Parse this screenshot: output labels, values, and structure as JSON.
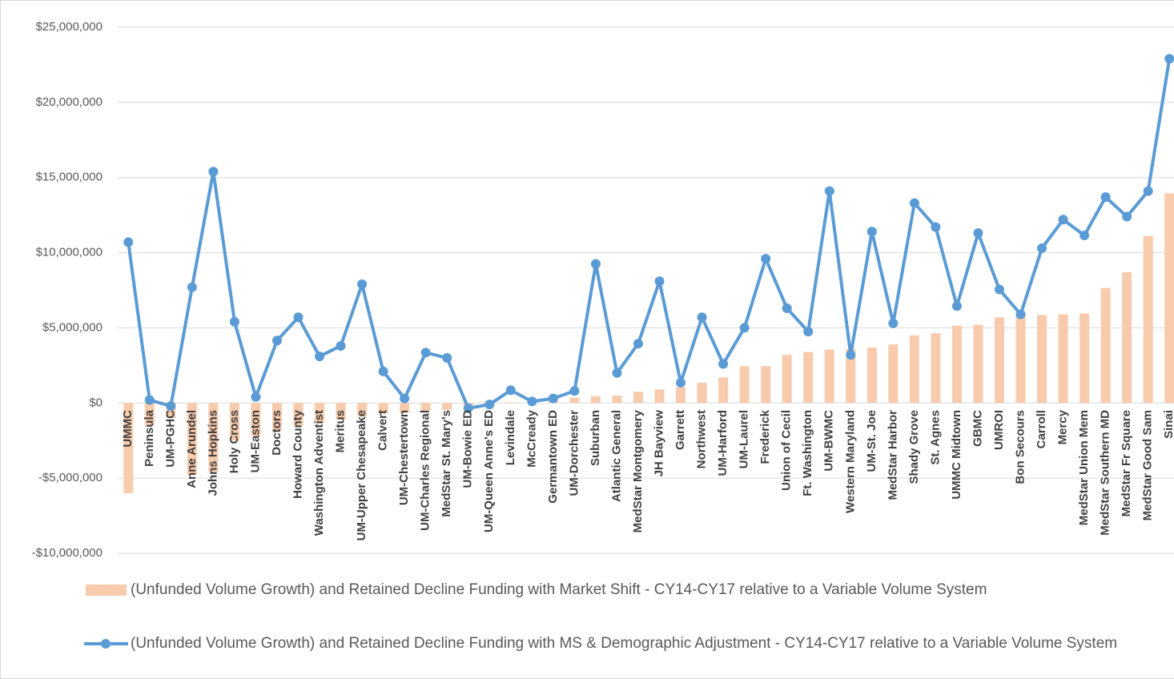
{
  "chart_data": {
    "type": "combo",
    "categories": [
      "UMMC",
      "Peninsula",
      "UM-PGHC",
      "Anne Arundel",
      "Johns Hopkins",
      "Holy Cross",
      "UM-Easton",
      "Doctors",
      "Howard County",
      "Washington Adventist",
      "Meritus",
      "UM-Upper Chesapeake",
      "Calvert",
      "UM-Chestertown",
      "UM-Charles Regional",
      "MedStar St. Mary's",
      "UM-Bowie ED",
      "UM-Queen Anne's ED",
      "Levindale",
      "McCready",
      "Germantown ED",
      "UM-Dorchester",
      "Suburban",
      "Atlantic General",
      "MedStar Montgomery",
      "JH Bayview",
      "Garrett",
      "Northwest",
      "UM-Harford",
      "UM-Laurel",
      "Frederick",
      "Union of Cecil",
      "Ft. Washington",
      "UM-BWMC",
      "Western Maryland",
      "UM-St. Joe",
      "MedStar Harbor",
      "Shady Grove",
      "St. Agnes",
      "UMMC Midtown",
      "GBMC",
      "UMROI",
      "Bon Secours",
      "Carroll",
      "Mercy",
      "MedStar Union Mem",
      "MedStar Southern MD",
      "MedStar Fr Square",
      "MedStar Good Sam",
      "Sinai"
    ],
    "series": [
      {
        "name": "(Unfunded Volume Growth) and Retained Decline Funding with Market Shift - CY14-CY17 relative to a Variable Volume System",
        "type": "bar",
        "color": "#f8cbad",
        "values": [
          -6000000,
          -1500000,
          -1000000,
          -4800000,
          -4600000,
          -2500000,
          -2200000,
          -1800000,
          -1500000,
          -1300000,
          -1100000,
          -900000,
          -700000,
          -650000,
          -550000,
          -450000,
          -200000,
          -100000,
          50000,
          100000,
          150000,
          350000,
          450000,
          500000,
          750000,
          900000,
          1050000,
          1350000,
          1700000,
          2450000,
          2450000,
          3200000,
          3400000,
          3550000,
          3600000,
          3700000,
          3900000,
          4500000,
          4650000,
          5150000,
          5200000,
          5700000,
          5850000,
          5850000,
          5900000,
          5950000,
          7650000,
          8700000,
          11100000,
          13950000
        ]
      },
      {
        "name": "(Unfunded Volume Growth) and Retained Decline Funding with MS & Demographic Adjustment - CY14-CY17 relative to a Variable Volume System",
        "type": "line",
        "color": "#5b9bd5",
        "values": [
          10700000,
          200000,
          -200000,
          7700000,
          15400000,
          5400000,
          400000,
          4150000,
          5700000,
          3100000,
          3800000,
          7900000,
          2100000,
          300000,
          3350000,
          3000000,
          -350000,
          -100000,
          850000,
          100000,
          300000,
          800000,
          9250000,
          2000000,
          3950000,
          8100000,
          1350000,
          5700000,
          2600000,
          5000000,
          9600000,
          6300000,
          4750000,
          14100000,
          3200000,
          11400000,
          5300000,
          13300000,
          11700000,
          6450000,
          11300000,
          7550000,
          5900000,
          10300000,
          12200000,
          11150000,
          13700000,
          12400000,
          14100000,
          22900000
        ]
      }
    ],
    "ylim": [
      -10000000,
      25000000
    ],
    "yticks": [
      {
        "value": -10000000,
        "label": "-$10,000,000"
      },
      {
        "value": -5000000,
        "label": "-$5,000,000"
      },
      {
        "value": 0,
        "label": "$0"
      },
      {
        "value": 5000000,
        "label": "$5,000,000"
      },
      {
        "value": 10000000,
        "label": "$10,000,000"
      },
      {
        "value": 15000000,
        "label": "$15,000,000"
      },
      {
        "value": 20000000,
        "label": "$20,000,000"
      },
      {
        "value": 25000000,
        "label": "$25,000,000"
      }
    ],
    "grid": true
  }
}
